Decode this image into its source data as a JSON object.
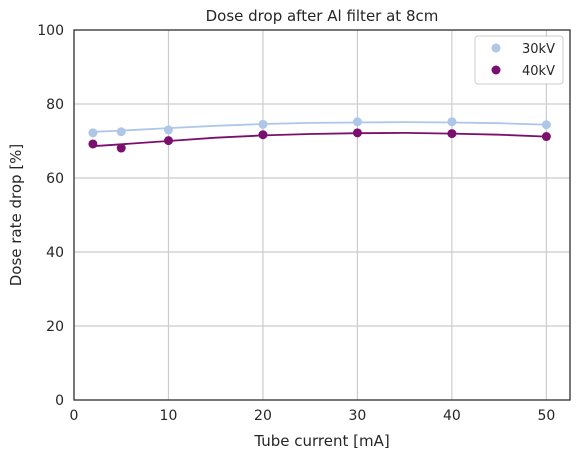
{
  "chart_data": {
    "type": "scatter",
    "title": "Dose drop after Al filter at 8cm",
    "xlabel": "Tube current [mA]",
    "ylabel": "Dose rate drop [%]",
    "xlim": [
      0,
      52.5
    ],
    "ylim": [
      0,
      100
    ],
    "xticks": [
      0,
      10,
      20,
      30,
      40,
      50
    ],
    "yticks": [
      0,
      20,
      40,
      60,
      80,
      100
    ],
    "grid": true,
    "legend_position": "top-right",
    "series": [
      {
        "name": "30kV",
        "color": "#aec7e8",
        "x": [
          2,
          5,
          10,
          20,
          30,
          40,
          50
        ],
        "y": [
          72.2,
          72.5,
          73.0,
          74.5,
          75.2,
          75.2,
          74.4
        ],
        "fit_curve": [
          [
            2,
            72.5
          ],
          [
            5,
            72.8
          ],
          [
            10,
            73.5
          ],
          [
            15,
            74.1
          ],
          [
            20,
            74.6
          ],
          [
            25,
            74.9
          ],
          [
            30,
            75.0
          ],
          [
            35,
            75.1
          ],
          [
            40,
            75.0
          ],
          [
            45,
            74.8
          ],
          [
            50,
            74.4
          ]
        ]
      },
      {
        "name": "40kV",
        "color": "#7b0f6e",
        "x": [
          2,
          5,
          10,
          20,
          30,
          40,
          50
        ],
        "y": [
          69.2,
          68.1,
          70.1,
          71.7,
          72.2,
          72.0,
          71.2
        ],
        "fit_curve": [
          [
            2,
            68.6
          ],
          [
            5,
            69.1
          ],
          [
            10,
            70.0
          ],
          [
            15,
            70.9
          ],
          [
            20,
            71.5
          ],
          [
            25,
            71.9
          ],
          [
            30,
            72.1
          ],
          [
            35,
            72.2
          ],
          [
            40,
            72.0
          ],
          [
            45,
            71.7
          ],
          [
            50,
            71.2
          ]
        ]
      }
    ]
  }
}
